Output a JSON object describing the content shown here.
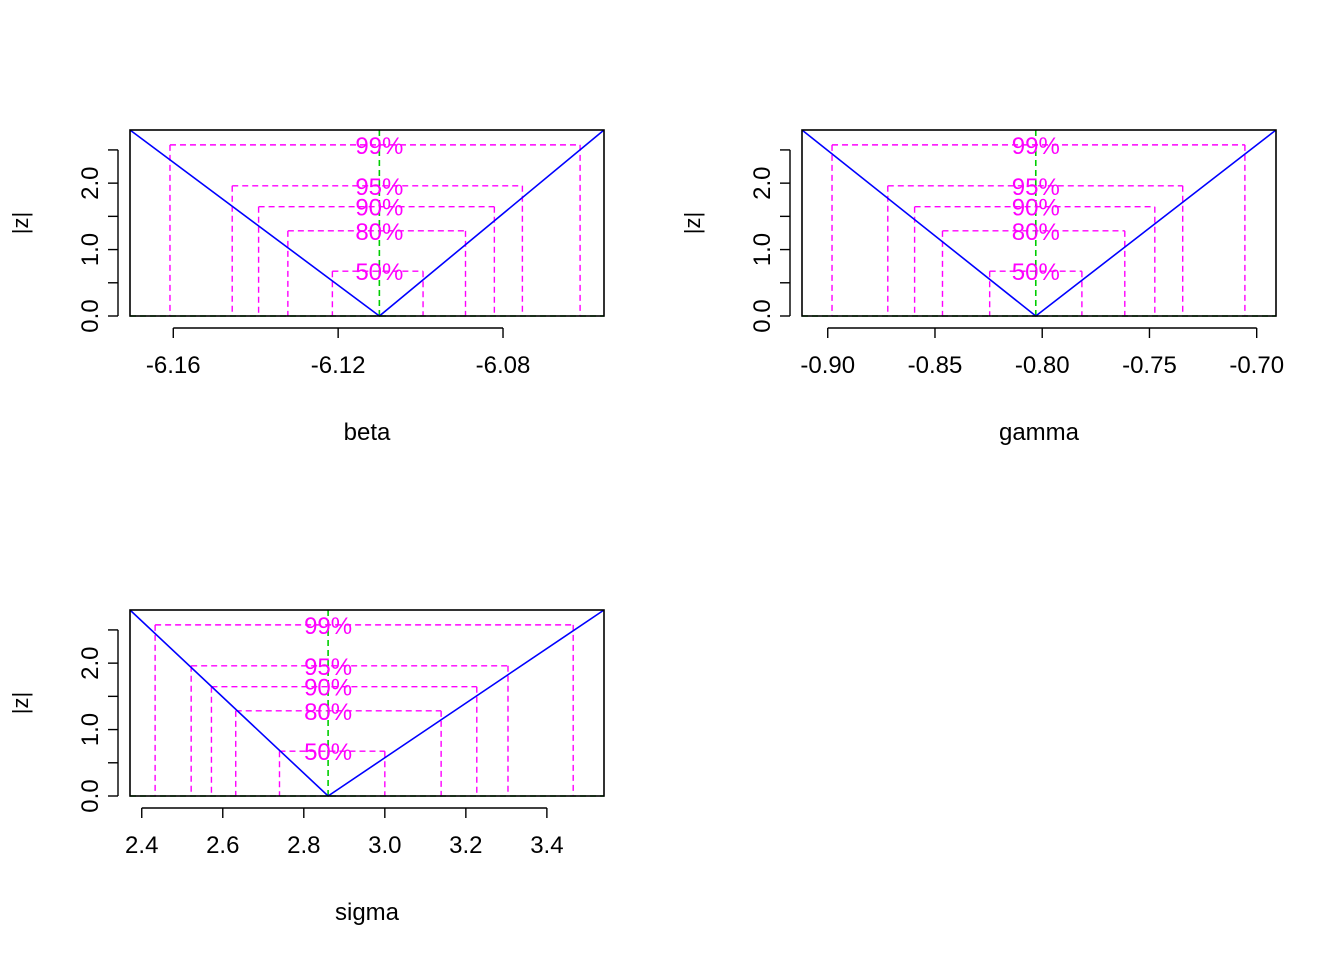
{
  "chart_data": [
    {
      "type": "line",
      "xlabel": "beta",
      "ylabel": "|z|",
      "xlim": [
        -6.1705,
        -6.0555
      ],
      "ylim": [
        0,
        2.8
      ],
      "xticks": [
        -6.16,
        -6.12,
        -6.08
      ],
      "xtick_labels": [
        "-6.16",
        "-6.12",
        "-6.08"
      ],
      "yticks": [
        0,
        0.5,
        1.0,
        1.5,
        2.0,
        2.5
      ],
      "ytick_labels": [
        "0.0",
        "",
        "1.0",
        "",
        "2.0",
        ""
      ],
      "estimate": -6.11,
      "profile_x": [
        -6.1705,
        -6.11,
        -6.0555
      ],
      "profile_z": [
        2.8,
        0,
        2.8
      ],
      "levels": [
        {
          "label": "50%",
          "z": 0.674,
          "lower": -6.1214,
          "upper": -6.0994
        },
        {
          "label": "80%",
          "z": 1.282,
          "lower": -6.1322,
          "upper": -6.0891
        },
        {
          "label": "90%",
          "z": 1.645,
          "lower": -6.1393,
          "upper": -6.0821
        },
        {
          "label": "95%",
          "z": 1.96,
          "lower": -6.1457,
          "upper": -6.0753
        },
        {
          "label": "99%",
          "z": 2.576,
          "lower": -6.1608,
          "upper": -6.0613
        }
      ],
      "grid": false
    },
    {
      "type": "line",
      "xlabel": "gamma",
      "ylabel": "|z|",
      "xlim": [
        -0.912,
        -0.691
      ],
      "ylim": [
        0,
        2.8
      ],
      "xticks": [
        -0.9,
        -0.85,
        -0.8,
        -0.75,
        -0.7
      ],
      "xtick_labels": [
        "-0.90",
        "-0.85",
        "-0.80",
        "-0.75",
        "-0.70"
      ],
      "yticks": [
        0,
        0.5,
        1.0,
        1.5,
        2.0,
        2.5
      ],
      "ytick_labels": [
        "0.0",
        "",
        "1.0",
        "",
        "2.0",
        ""
      ],
      "estimate": -0.803,
      "profile_x": [
        -0.912,
        -0.803,
        -0.691
      ],
      "profile_z": [
        2.8,
        0,
        2.8
      ],
      "levels": [
        {
          "label": "50%",
          "z": 0.674,
          "lower": -0.8245,
          "upper": -0.7815
        },
        {
          "label": "80%",
          "z": 1.282,
          "lower": -0.8465,
          "upper": -0.7615
        },
        {
          "label": "90%",
          "z": 1.645,
          "lower": -0.8595,
          "upper": -0.7475
        },
        {
          "label": "95%",
          "z": 1.96,
          "lower": -0.872,
          "upper": -0.7345
        },
        {
          "label": "99%",
          "z": 2.576,
          "lower": -0.898,
          "upper": -0.7055
        }
      ],
      "grid": false
    },
    {
      "type": "line",
      "xlabel": "sigma",
      "ylabel": "|z|",
      "xlim": [
        2.371,
        3.541
      ],
      "ylim": [
        0,
        2.8
      ],
      "xticks": [
        2.4,
        2.6,
        2.8,
        3.0,
        3.2,
        3.4
      ],
      "xtick_labels": [
        "2.4",
        "2.6",
        "2.8",
        "3.0",
        "3.2",
        "3.4"
      ],
      "yticks": [
        0,
        0.5,
        1.0,
        1.5,
        2.0,
        2.5
      ],
      "ytick_labels": [
        "0.0",
        "",
        "1.0",
        "",
        "2.0",
        ""
      ],
      "estimate": 2.86,
      "profile_x": [
        2.371,
        2.86,
        3.541
      ],
      "profile_z": [
        2.8,
        0,
        2.8
      ],
      "levels": [
        {
          "label": "50%",
          "z": 0.674,
          "lower": 2.74,
          "upper": 3.0
        },
        {
          "label": "80%",
          "z": 1.282,
          "lower": 2.632,
          "upper": 3.139
        },
        {
          "label": "90%",
          "z": 1.645,
          "lower": 2.572,
          "upper": 3.227
        },
        {
          "label": "95%",
          "z": 1.96,
          "lower": 2.522,
          "upper": 3.304
        },
        {
          "label": "99%",
          "z": 2.576,
          "lower": 2.433,
          "upper": 3.465
        }
      ],
      "grid": false
    }
  ],
  "colors": {
    "profile_line": "#0000ff",
    "interval_lines": "#ff00ff",
    "reference_lines": "#00cd00",
    "axes": "#000000"
  }
}
